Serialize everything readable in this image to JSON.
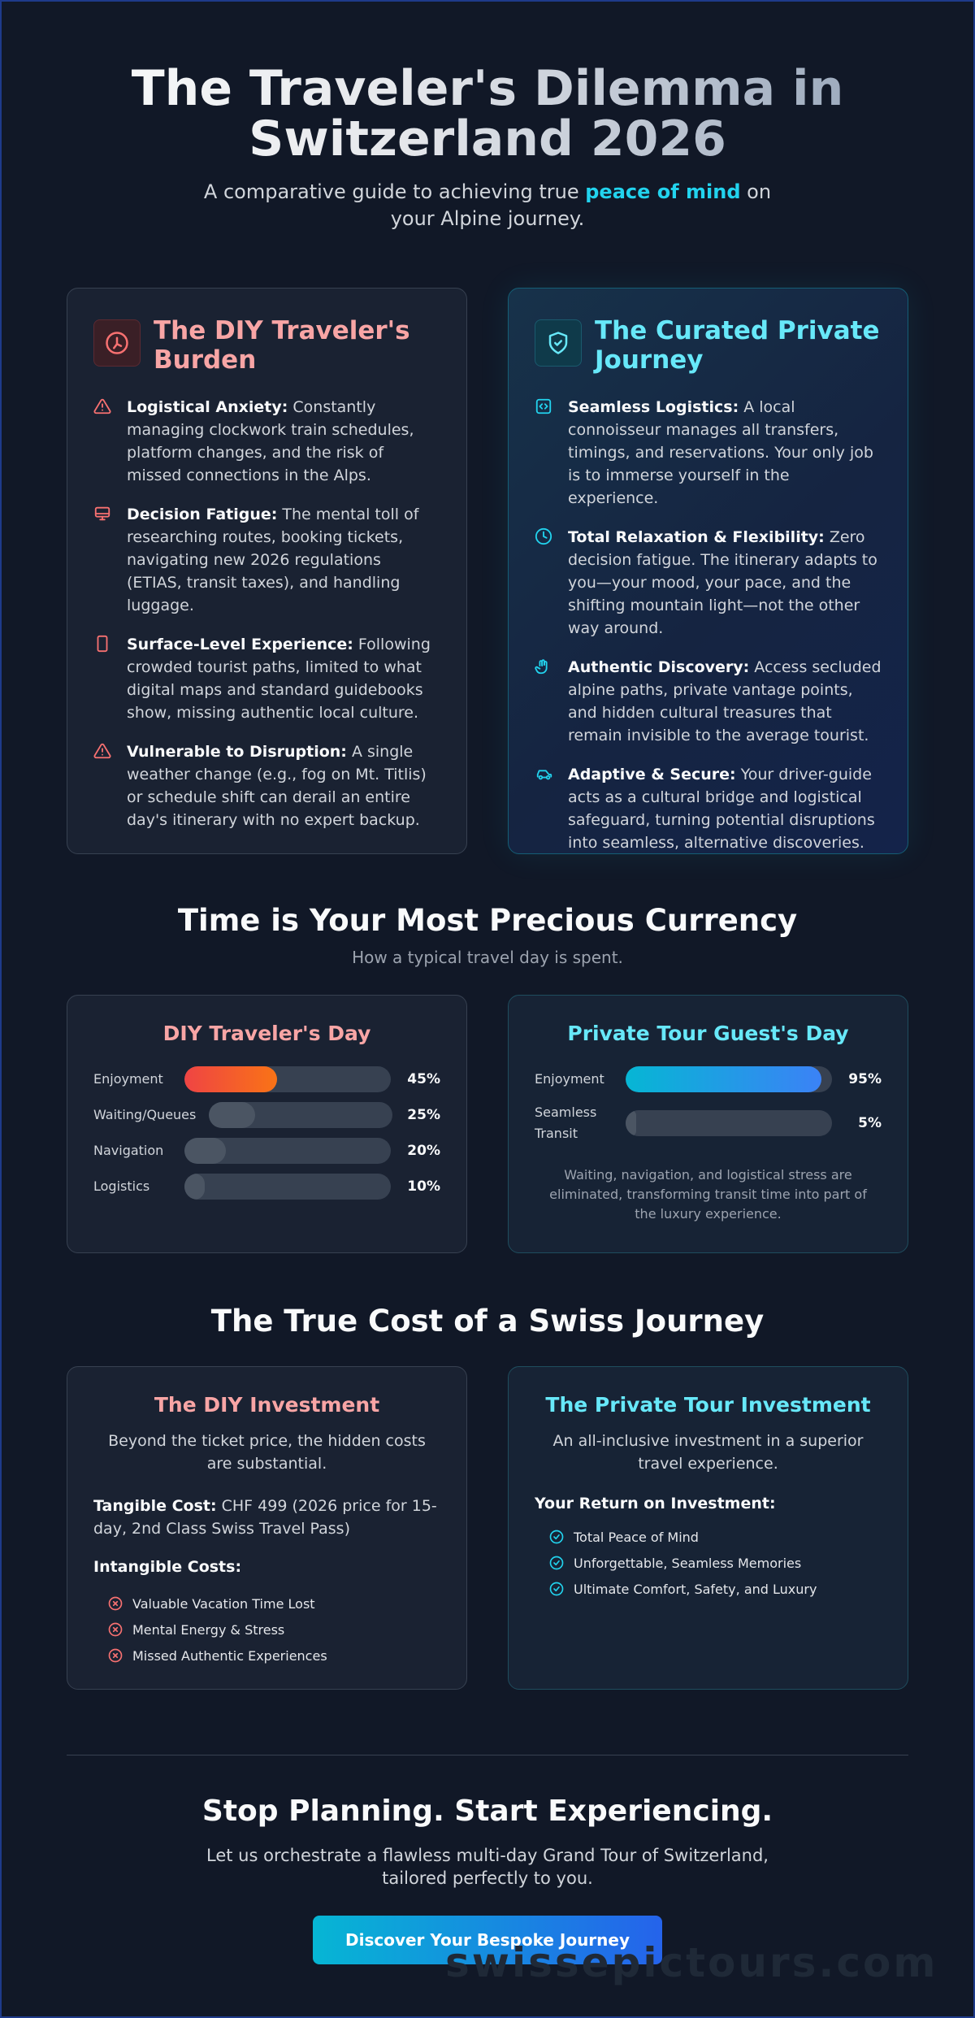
{
  "hero": {
    "title_line1": "The Traveler's Dilemma in",
    "title_line2": "Switzerland 2026",
    "subtitle_pre": "A comparative guide to achieving true ",
    "subtitle_highlight": "peace of mind",
    "subtitle_post": " on your Alpine journey."
  },
  "diy_card": {
    "title": "The DIY Traveler's Burden",
    "icon": "compass-icon",
    "items": [
      {
        "icon": "warning-triangle-icon",
        "bold": "Logistical Anxiety:",
        "text": " Constantly managing clockwork train schedules, platform changes, and the risk of missed connections in the Alps."
      },
      {
        "icon": "monitor-icon",
        "bold": "Decision Fatigue:",
        "text": " The mental toll of researching routes, booking tickets, navigating new 2026 regulations (ETIAS, transit taxes), and handling luggage."
      },
      {
        "icon": "phone-icon",
        "bold": "Surface-Level Experience:",
        "text": " Following crowded tourist paths, limited to what digital maps and standard guidebooks show, missing authentic local culture."
      },
      {
        "icon": "warning-triangle-icon",
        "bold": "Vulnerable to Disruption:",
        "text": " A single weather change (e.g., fog on Mt. Titlis) or schedule shift can derail an entire day's itinerary with no expert backup."
      }
    ]
  },
  "curated_card": {
    "title": "The Curated Private Journey",
    "icon": "shield-check-icon",
    "items": [
      {
        "icon": "code-box-icon",
        "bold": "Seamless Logistics:",
        "text": " A local connoisseur manages all transfers, timings, and reservations. Your only job is to immerse yourself in the experience."
      },
      {
        "icon": "clock-icon",
        "bold": "Total Relaxation & Flexibility:",
        "text": " Zero decision fatigue. The itinerary adapts to you—your mood, your pace, and the shifting mountain light—not the other way around."
      },
      {
        "icon": "hand-icon",
        "bold": "Authentic Discovery:",
        "text": " Access secluded alpine paths, private vantage points, and hidden cultural treasures that remain invisible to the average tourist."
      },
      {
        "icon": "car-icon",
        "bold": "Adaptive & Secure:",
        "text": " Your driver-guide acts as a cultural bridge and logistical safeguard, turning potential disruptions into seamless, alternative discoveries."
      }
    ]
  },
  "time": {
    "heading": "Time is Your Most Precious Currency",
    "subheading": "How a typical travel day is spent.",
    "diy": {
      "title": "DIY Traveler's Day",
      "rows": [
        {
          "label": "Enjoyment",
          "value": 45,
          "pct": "45%"
        },
        {
          "label": "Waiting/Queues",
          "value": 25,
          "pct": "25%"
        },
        {
          "label": "Navigation",
          "value": 20,
          "pct": "20%"
        },
        {
          "label": "Logistics",
          "value": 10,
          "pct": "10%"
        }
      ]
    },
    "private": {
      "title": "Private Tour Guest's Day",
      "rows": [
        {
          "label": "Enjoyment",
          "value": 95,
          "pct": "95%"
        },
        {
          "label": "Seamless Transit",
          "value": 5,
          "pct": "5%"
        }
      ],
      "note": "Waiting, navigation, and logistical stress are eliminated, transforming transit time into part of the luxury experience."
    }
  },
  "cost": {
    "heading": "The True Cost of a Swiss Journey",
    "diy": {
      "title": "The DIY Investment",
      "intro": "Beyond the ticket price, the hidden costs are substantial.",
      "tangible_label": "Tangible Cost:",
      "tangible_text": " CHF 499 (2026 price for 15-day, 2nd Class Swiss Travel Pass)",
      "intangible_label": "Intangible Costs:",
      "items": [
        "Valuable Vacation Time Lost",
        "Mental Energy & Stress",
        "Missed Authentic Experiences"
      ]
    },
    "private": {
      "title": "The Private Tour Investment",
      "intro": "An all-inclusive investment in a superior travel experience.",
      "roi_label": "Your Return on Investment:",
      "items": [
        "Total Peace of Mind",
        "Unforgettable, Seamless Memories",
        "Ultimate Comfort, Safety, and Luxury"
      ]
    }
  },
  "cta": {
    "heading": "Stop Planning. Start Experiencing.",
    "text": "Let us orchestrate a flawless multi-day Grand Tour of Switzerland, tailored perfectly to you.",
    "button": "Discover Your Bespoke Journey"
  },
  "watermark": "swissepictours.com",
  "colors": {
    "background": "#111827",
    "diy_accent": "#f8a5a5",
    "curated_accent": "#67e8f9",
    "diy_gradient": [
      "#ef4444",
      "#f97316"
    ],
    "curated_gradient": [
      "#06b6d4",
      "#3b82f6"
    ]
  }
}
